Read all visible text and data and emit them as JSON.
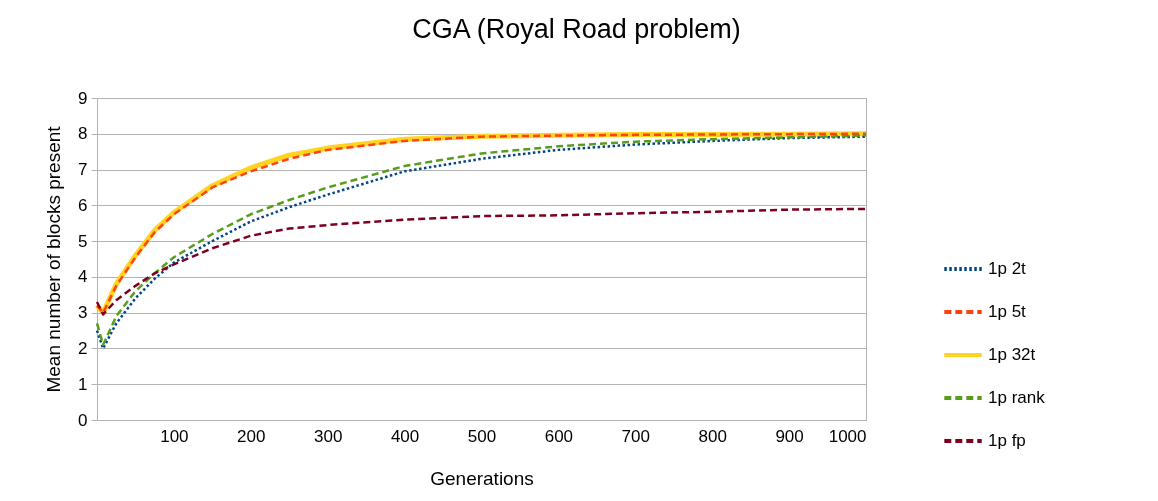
{
  "chart_data": {
    "type": "line",
    "title": "CGA (Royal Road problem)",
    "xlabel": "Generations",
    "ylabel": "Mean number of blocks present",
    "x": [
      0,
      8,
      25,
      50,
      75,
      100,
      150,
      200,
      250,
      300,
      400,
      500,
      600,
      700,
      800,
      900,
      1000
    ],
    "xlim": [
      0,
      1000
    ],
    "xticks": [
      100,
      200,
      300,
      400,
      500,
      600,
      700,
      800,
      900,
      1000
    ],
    "ylim": [
      0,
      9
    ],
    "yticks": [
      0,
      1,
      2,
      3,
      4,
      5,
      6,
      7,
      8,
      9
    ],
    "grid": "y",
    "legend": "right",
    "marker": "none",
    "series": [
      {
        "name": "1p 2t",
        "color": "#004586",
        "line_style": "dotted",
        "values": [
          2.5,
          2.0,
          2.7,
          3.4,
          3.95,
          4.4,
          5.0,
          5.55,
          5.95,
          6.3,
          6.95,
          7.3,
          7.55,
          7.7,
          7.8,
          7.88,
          7.92
        ]
      },
      {
        "name": "1p 5t",
        "color": "#ff420e",
        "line_style": "dashed",
        "values": [
          3.2,
          3.0,
          3.75,
          4.55,
          5.25,
          5.75,
          6.5,
          6.95,
          7.3,
          7.55,
          7.8,
          7.92,
          7.95,
          7.97,
          7.98,
          7.99,
          8.0
        ]
      },
      {
        "name": "1p 32t",
        "color": "#ffd320",
        "line_style": "solid",
        "values": [
          3.2,
          3.0,
          3.8,
          4.6,
          5.3,
          5.8,
          6.55,
          7.05,
          7.4,
          7.6,
          7.85,
          7.93,
          7.96,
          7.98,
          7.98,
          7.99,
          8.0
        ]
      },
      {
        "name": "1p rank",
        "color": "#579d1c",
        "line_style": "dashed",
        "values": [
          2.7,
          2.1,
          2.9,
          3.6,
          4.1,
          4.55,
          5.2,
          5.75,
          6.15,
          6.5,
          7.1,
          7.45,
          7.65,
          7.78,
          7.85,
          7.9,
          7.95
        ]
      },
      {
        "name": "1p fp",
        "color": "#7e0021",
        "line_style": "dashed",
        "values": [
          3.3,
          2.95,
          3.35,
          3.75,
          4.1,
          4.35,
          4.8,
          5.15,
          5.35,
          5.45,
          5.6,
          5.7,
          5.72,
          5.78,
          5.82,
          5.88,
          5.9
        ]
      }
    ]
  }
}
